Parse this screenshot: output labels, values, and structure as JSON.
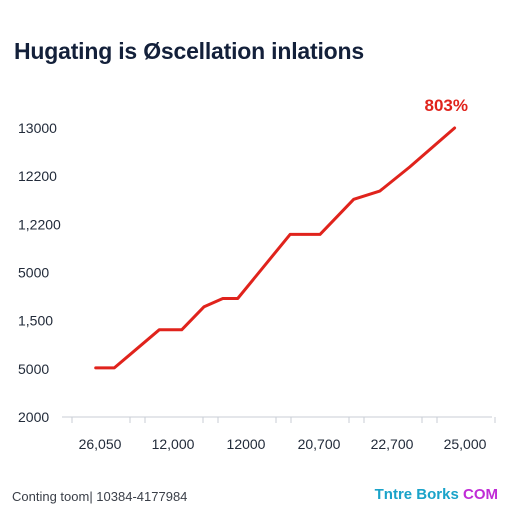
{
  "colors": {
    "line": "#e0231c",
    "axis": "#c9ced6",
    "title": "#13203a",
    "brand_primary": "#1aa3c9",
    "brand_accent": "#c02bd6"
  },
  "chart_data": {
    "type": "line",
    "title": "Hugating is Øscellation inlations",
    "xlabel": "",
    "ylabel": "",
    "y_tick_labels": [
      "13000",
      "12200",
      "1,2200",
      "5000",
      "1,500",
      "5000",
      "2000"
    ],
    "x_tick_labels": [
      "26,050",
      "12,000",
      "12000",
      "20,700",
      "22,700",
      "25,000"
    ],
    "ylim": [
      0,
      6
    ],
    "xlim": [
      0,
      11.5
    ],
    "grid": false,
    "legend": "none",
    "annotation": "803%",
    "series": [
      {
        "x": [
          0.9,
          1.4,
          2.6,
          3.2,
          3.8,
          4.3,
          4.7,
          6.1,
          6.9,
          7.8,
          8.5,
          9.3,
          10.5
        ],
        "y": [
          1.02,
          1.02,
          1.81,
          1.81,
          2.29,
          2.46,
          2.46,
          3.79,
          3.79,
          4.52,
          4.69,
          5.19,
          6.0
        ]
      }
    ]
  },
  "footer": {
    "source_text": "Conting toom| 10384-4177984",
    "brand_part1": "Tntre Borks",
    "brand_part2": "COM"
  }
}
